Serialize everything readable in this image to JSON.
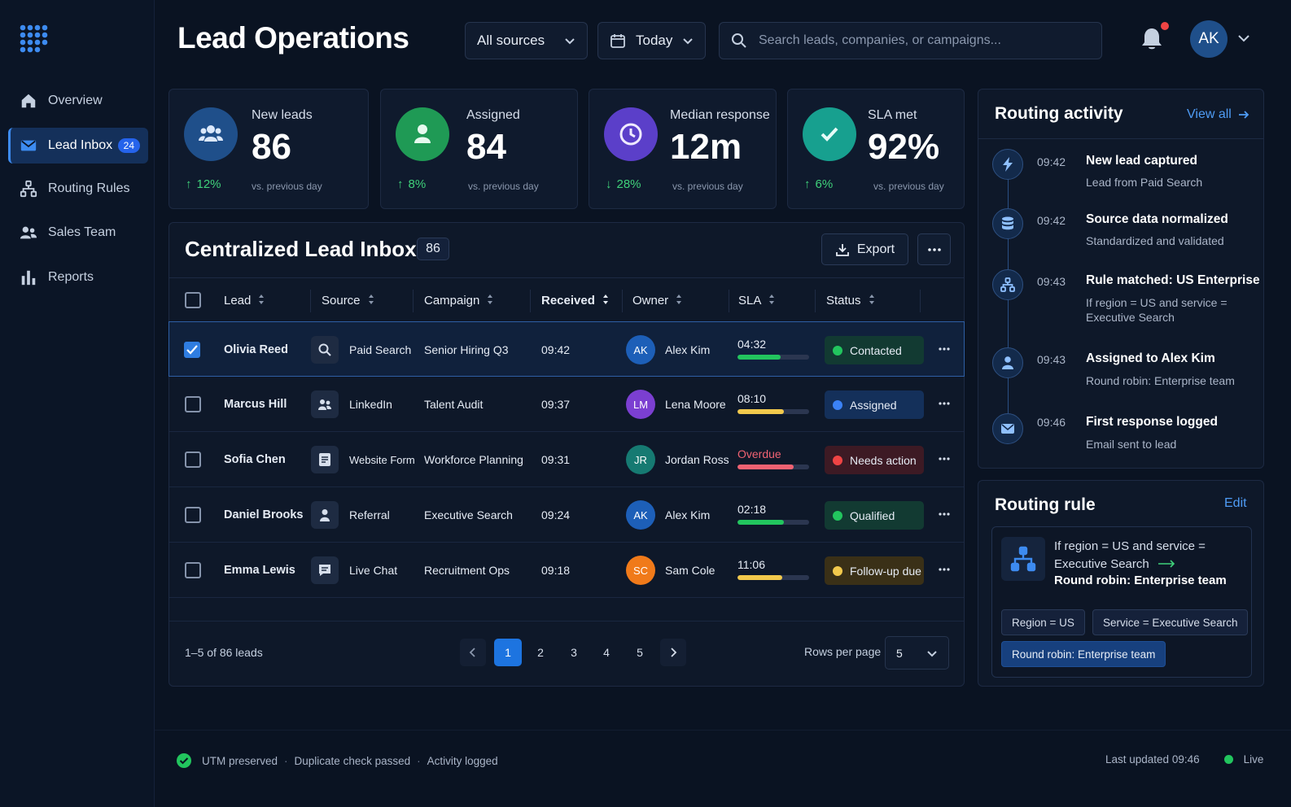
{
  "header": {
    "title": "Lead Operations",
    "source_filter": "All sources",
    "date_filter": "Today",
    "search_placeholder": "Search leads, companies, or campaigns...",
    "user_initials": "AK"
  },
  "sidebar": {
    "items": [
      {
        "label": "Overview",
        "icon": "home-icon"
      },
      {
        "label": "Lead Inbox",
        "icon": "mail-icon",
        "badge": "24",
        "active": true
      },
      {
        "label": "Routing Rules",
        "icon": "flow-icon"
      },
      {
        "label": "Sales Team",
        "icon": "team-icon"
      },
      {
        "label": "Reports",
        "icon": "bar-chart-icon"
      }
    ]
  },
  "kpis": [
    {
      "label": "New leads",
      "value": "86",
      "delta": "12%",
      "direction": "up",
      "compare": "vs. previous day",
      "color": "#1f4f8a",
      "icon": "users-icon"
    },
    {
      "label": "Assigned",
      "value": "84",
      "delta": "8%",
      "direction": "up",
      "compare": "vs. previous day",
      "color": "#1f9a55",
      "icon": "user-icon"
    },
    {
      "label": "Median response",
      "value": "12m",
      "delta": "28%",
      "direction": "down",
      "compare": "vs. previous day",
      "color": "#5b3fc9",
      "icon": "clock-icon"
    },
    {
      "label": "SLA met",
      "value": "92%",
      "delta": "6%",
      "direction": "up",
      "compare": "vs. previous day",
      "color": "#17a08f",
      "icon": "check-icon"
    }
  ],
  "inbox": {
    "title": "Centralized Lead Inbox",
    "count": "86",
    "export_label": "Export",
    "columns": [
      "Lead",
      "Source",
      "Campaign",
      "Received",
      "Owner",
      "SLA",
      "Status"
    ],
    "rows": [
      {
        "lead": "Olivia Reed",
        "source": "Paid Search",
        "source_icon": "search-icon",
        "campaign": "Senior Hiring Q3",
        "received": "09:42",
        "owner_initials": "AK",
        "owner": "Alex Kim",
        "owner_color": "#1d5fb8",
        "sla": "04:32",
        "sla_fraction": 0.6,
        "sla_color": "#22c55e",
        "status": "Contacted",
        "status_color": "#22c55e",
        "status_bg": "#123a32",
        "selected": true
      },
      {
        "lead": "Marcus Hill",
        "source": "LinkedIn",
        "source_icon": "people-icon",
        "campaign": "Talent Audit",
        "received": "09:37",
        "owner_initials": "LM",
        "owner": "Lena Moore",
        "owner_color": "#7b3fd1",
        "sla": "08:10",
        "sla_fraction": 0.65,
        "sla_color": "#f2c94c",
        "status": "Assigned",
        "status_color": "#3b82f6",
        "status_bg": "#14305a",
        "selected": false
      },
      {
        "lead": "Sofia Chen",
        "source": "Website Form",
        "source_icon": "form-icon",
        "campaign": "Workforce Planning",
        "received": "09:31",
        "owner_initials": "JR",
        "owner": "Jordan Ross",
        "owner_color": "#167a72",
        "sla": "Overdue",
        "sla_fraction": 0.78,
        "sla_color": "#f06272",
        "status": "Needs action",
        "status_color": "#ef4444",
        "status_bg": "#3d1a24",
        "selected": false,
        "overdue": true
      },
      {
        "lead": "Daniel Brooks",
        "source": "Referral",
        "source_icon": "person-icon",
        "campaign": "Executive Search",
        "received": "09:24",
        "owner_initials": "AK",
        "owner": "Alex Kim",
        "owner_color": "#1d5fb8",
        "sla": "02:18",
        "sla_fraction": 0.65,
        "sla_color": "#22c55e",
        "status": "Qualified",
        "status_color": "#22c55e",
        "status_bg": "#123a32",
        "selected": false
      },
      {
        "lead": "Emma Lewis",
        "source": "Live Chat",
        "source_icon": "chat-icon",
        "campaign": "Recruitment Ops",
        "received": "09:18",
        "owner_initials": "SC",
        "owner": "Sam Cole",
        "owner_color": "#f07a1a",
        "sla": "11:06",
        "sla_fraction": 0.62,
        "sla_color": "#f2c94c",
        "status": "Follow-up due",
        "status_color": "#f2c94c",
        "status_bg": "#3a3017",
        "selected": false
      }
    ],
    "pager_info": "1–5 of 86 leads",
    "pages": [
      "1",
      "2",
      "3",
      "4",
      "5"
    ],
    "current_page": "1",
    "rows_per_page_label": "Rows per page",
    "rows_per_page": "5"
  },
  "activity": {
    "title": "Routing activity",
    "view_all": "View all",
    "items": [
      {
        "time": "09:42",
        "title": "New lead captured",
        "desc": "Lead from Paid Search",
        "icon": "bolt-icon"
      },
      {
        "time": "09:42",
        "title": "Source data normalized",
        "desc": "Standardized and validated",
        "icon": "database-icon"
      },
      {
        "time": "09:43",
        "title": "Rule matched: US Enterprise",
        "desc": "If region = US and service = Executive Search",
        "icon": "flow-icon"
      },
      {
        "time": "09:43",
        "title": "Assigned to Alex Kim",
        "desc": "Round robin: Enterprise team",
        "icon": "user-icon"
      },
      {
        "time": "09:46",
        "title": "First response logged",
        "desc": "Email sent to lead",
        "icon": "mail-icon"
      }
    ]
  },
  "rule": {
    "title": "Routing rule",
    "edit": "Edit",
    "condition": "If region = US and service = Executive Search",
    "action": "Round robin: Enterprise team",
    "chips": [
      "Region = US",
      "Service = Executive Search",
      "Round robin: Enterprise team"
    ]
  },
  "footer": {
    "checks": [
      "UTM preserved",
      "Duplicate check passed",
      "Activity logged"
    ],
    "last_updated": "Last updated 09:46",
    "live": "Live"
  }
}
